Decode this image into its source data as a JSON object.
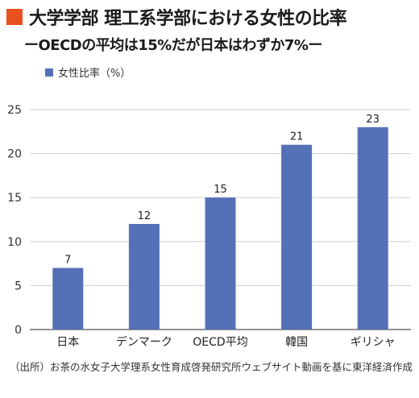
{
  "header": {
    "title": "大学学部 理工系学部における女性の比率",
    "subtitle": "ーOECDの平均は15%だが日本はわずか7%ー"
  },
  "legend": {
    "label": "女性比率（%）"
  },
  "chart_data": {
    "type": "bar",
    "title": "大学学部 理工系学部における女性の比率",
    "subtitle": "ーOECDの平均は15%だが日本はわずか7%ー",
    "categories": [
      "日本",
      "デンマーク",
      "OECD平均",
      "韓国",
      "ギリシャ"
    ],
    "series": [
      {
        "name": "女性比率（%）",
        "values": [
          7,
          12,
          15,
          21,
          23
        ]
      }
    ],
    "ylim": [
      0,
      25
    ],
    "yticks": [
      0,
      5,
      10,
      15,
      20,
      25
    ],
    "grid": true,
    "legend_position": "top-left",
    "bar_color": "#5470b6"
  },
  "source": {
    "text": "（出所）お茶の水女子大学理系女性育成啓発研究所ウェブサイト動画を基に東洋経済作成"
  }
}
